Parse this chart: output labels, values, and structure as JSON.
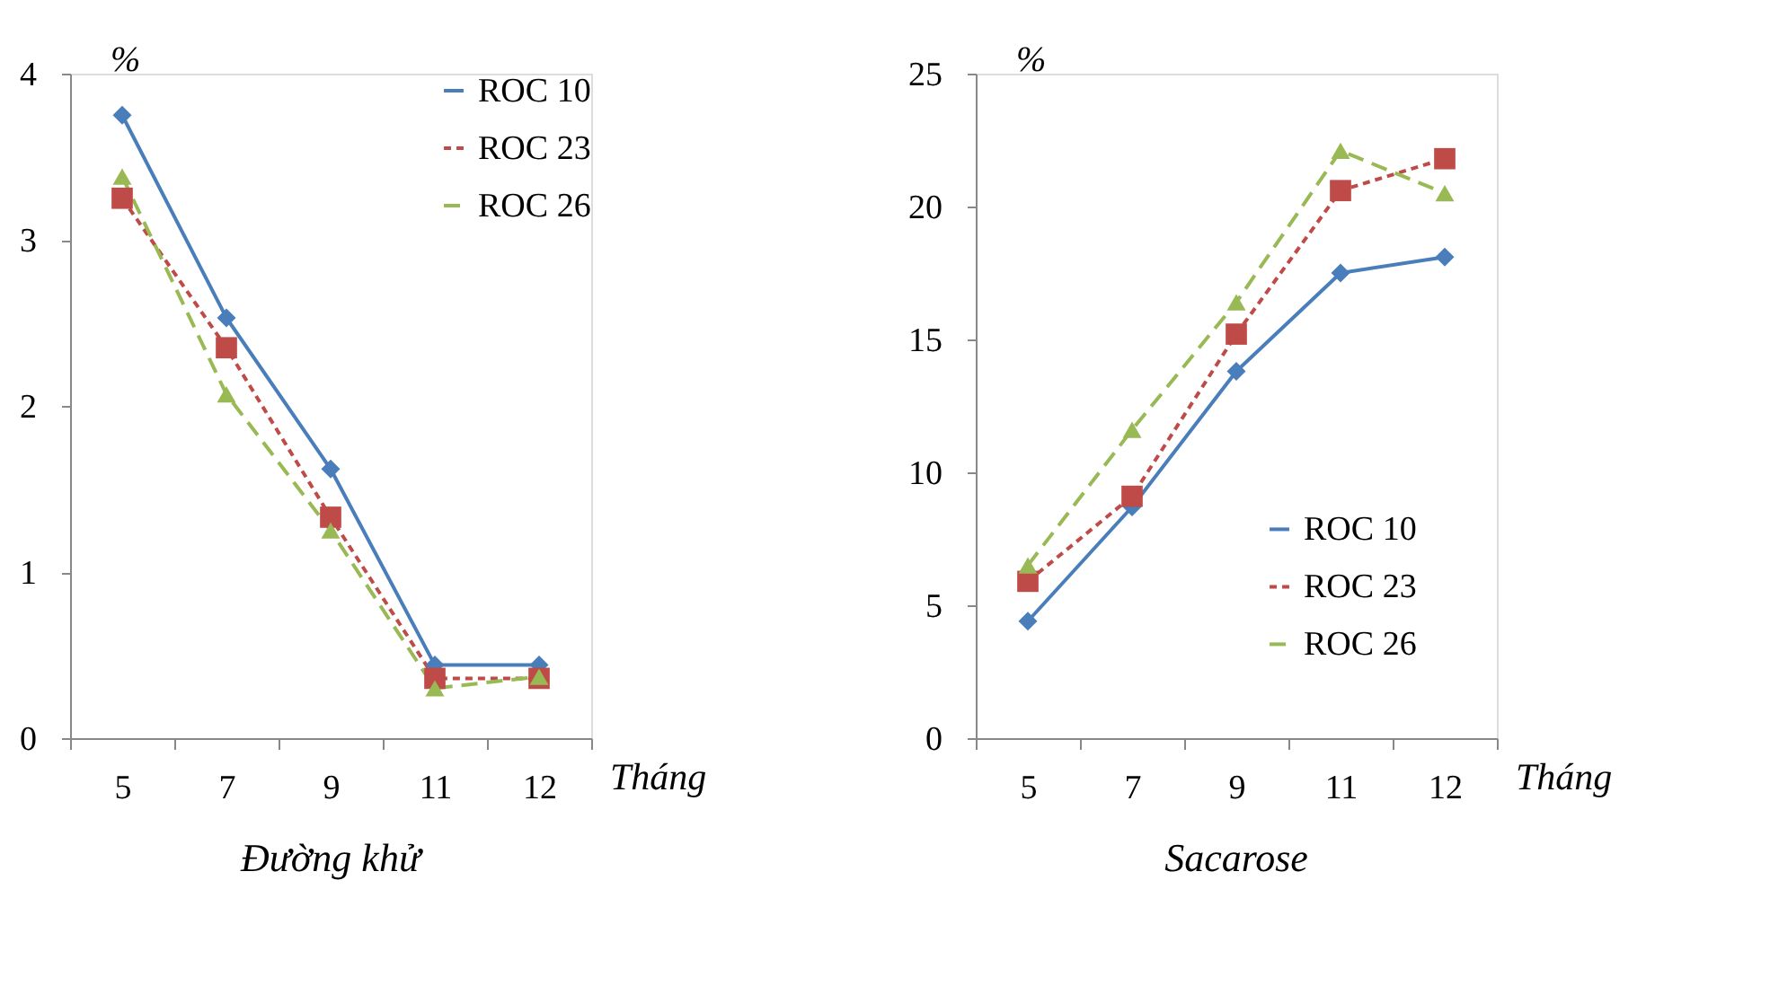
{
  "chart_data": [
    {
      "type": "line",
      "title": "Đường khử",
      "xlabel": "Tháng",
      "ylabel": "%",
      "categories": [
        "5",
        "7",
        "9",
        "11",
        "12"
      ],
      "ylim": [
        0,
        4
      ],
      "yticks": [
        0,
        1,
        2,
        3,
        4
      ],
      "grid": false,
      "legend": "top right",
      "series": [
        {
          "name": "ROC 10",
          "color": "#4a7ebb",
          "marker": "diamond",
          "line_style": "solid",
          "values": [
            3.75,
            2.53,
            1.62,
            0.44,
            0.44
          ]
        },
        {
          "name": "ROC 23",
          "color": "#be4b48",
          "marker": "square",
          "line_style": "dashed",
          "values": [
            3.25,
            2.35,
            1.33,
            0.36,
            0.36
          ]
        },
        {
          "name": "ROC 26",
          "color": "#98b954",
          "marker": "triangle",
          "line_style": "dashed",
          "values": [
            3.38,
            2.07,
            1.25,
            0.3,
            0.37
          ]
        }
      ]
    },
    {
      "type": "line",
      "title": "Sacarose",
      "xlabel": "Tháng",
      "ylabel": "%",
      "categories": [
        "5",
        "7",
        "9",
        "11",
        "12"
      ],
      "ylim": [
        0,
        25
      ],
      "yticks": [
        0,
        5,
        10,
        15,
        20,
        25
      ],
      "grid": false,
      "legend": "right",
      "series": [
        {
          "name": "ROC 10",
          "color": "#4a7ebb",
          "marker": "diamond",
          "line_style": "solid",
          "values": [
            4.4,
            8.7,
            13.8,
            17.5,
            18.1
          ]
        },
        {
          "name": "ROC 23",
          "color": "#be4b48",
          "marker": "square",
          "line_style": "dashed",
          "values": [
            5.9,
            9.1,
            15.2,
            20.6,
            21.8
          ]
        },
        {
          "name": "ROC 26",
          "color": "#98b954",
          "marker": "triangle",
          "line_style": "dashed",
          "values": [
            6.5,
            11.6,
            16.4,
            22.1,
            20.5
          ]
        }
      ]
    }
  ]
}
